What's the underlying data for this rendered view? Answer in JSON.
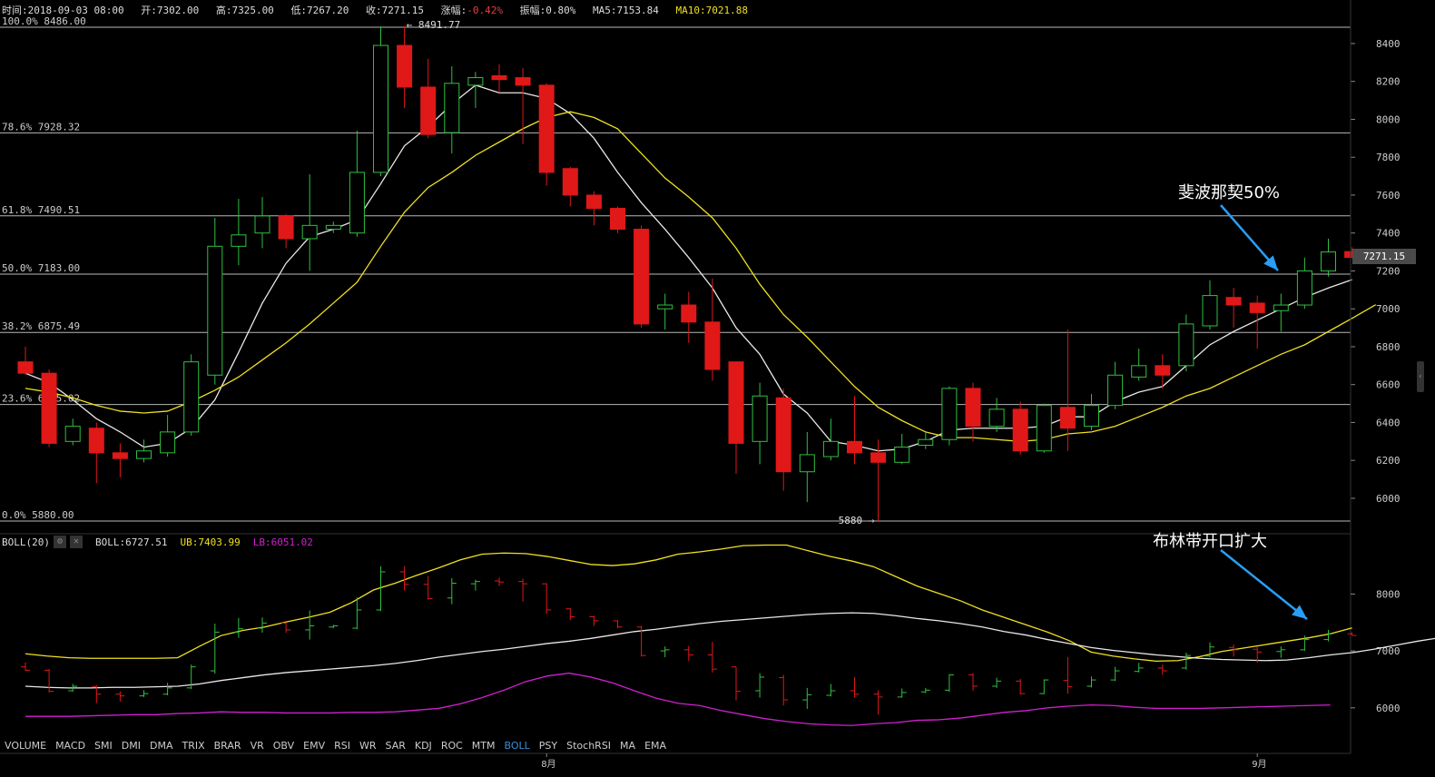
{
  "info_bar": {
    "time": "时间:2018-09-03 08:00",
    "open": "开:7302.00",
    "high": "高:7325.00",
    "low": "低:7267.20",
    "close": "收:7271.15",
    "change_label": "涨幅:",
    "change_value": "-0.42%",
    "amplitude": "振幅:0.80%",
    "ma5": "MA5:7153.84",
    "ma10": "MA10:7021.88"
  },
  "current_price": "7271.15",
  "boll_header": {
    "name": "BOLL(20)",
    "mid": "BOLL:6727.51",
    "ub": "UB:7403.99",
    "lb": "LB:6051.02"
  },
  "annotations": {
    "fib": "斐波那契50%",
    "boll": "布林带开口扩大"
  },
  "tabs": [
    "VOLUME",
    "MACD",
    "SMI",
    "DMI",
    "DMA",
    "TRIX",
    "BRAR",
    "VR",
    "OBV",
    "EMV",
    "RSI",
    "WR",
    "SAR",
    "KDJ",
    "ROC",
    "MTM",
    "BOLL",
    "PSY",
    "StochRSI",
    "MA",
    "EMA"
  ],
  "active_tab": "BOLL",
  "colors": {
    "up": "#30c040",
    "down": "#e01818",
    "ma5": "#e8e8e8",
    "ma10": "#f0e020",
    "ub": "#f0e020",
    "lb": "#d020d0",
    "mid": "#e8e8e8",
    "grid": "#d8d8d8",
    "arrow": "#2a9df4"
  },
  "chart_data": {
    "type": "candlestick",
    "price_axis": {
      "range": [
        5880,
        8486
      ],
      "ticks": [
        6000,
        6200,
        6400,
        6600,
        6800,
        7000,
        7200,
        7400,
        7600,
        7800,
        8000,
        8200,
        8400
      ]
    },
    "fib_levels": [
      {
        "label": "100.0% 8486.00",
        "value": 8486
      },
      {
        "label": "78.6% 7928.32",
        "value": 7928.32
      },
      {
        "label": "61.8% 7490.51",
        "value": 7490.51
      },
      {
        "label": "50.0% 7183.00",
        "value": 7183
      },
      {
        "label": "38.2% 6875.49",
        "value": 6875.49
      },
      {
        "label": "23.6% 6495.02",
        "value": 6495.02
      },
      {
        "label": "0.0% 5880.00",
        "value": 5880
      }
    ],
    "high_marker": "8491.77",
    "low_marker": "5880",
    "x_labels": [
      {
        "label": "8月",
        "index": 22
      },
      {
        "label": "9月",
        "index": 52
      }
    ],
    "candles": [
      {
        "o": 6720,
        "h": 6800,
        "l": 6650,
        "c": 6660
      },
      {
        "o": 6660,
        "h": 6680,
        "l": 6270,
        "c": 6290
      },
      {
        "o": 6300,
        "h": 6420,
        "l": 6280,
        "c": 6380
      },
      {
        "o": 6370,
        "h": 6400,
        "l": 6080,
        "c": 6240
      },
      {
        "o": 6240,
        "h": 6290,
        "l": 6110,
        "c": 6210
      },
      {
        "o": 6210,
        "h": 6310,
        "l": 6190,
        "c": 6250
      },
      {
        "o": 6240,
        "h": 6440,
        "l": 6220,
        "c": 6350
      },
      {
        "o": 6350,
        "h": 6760,
        "l": 6330,
        "c": 6720
      },
      {
        "o": 6650,
        "h": 7480,
        "l": 6600,
        "c": 7330
      },
      {
        "o": 7330,
        "h": 7580,
        "l": 7230,
        "c": 7390
      },
      {
        "o": 7400,
        "h": 7590,
        "l": 7320,
        "c": 7490
      },
      {
        "o": 7490,
        "h": 7500,
        "l": 7320,
        "c": 7370
      },
      {
        "o": 7370,
        "h": 7710,
        "l": 7200,
        "c": 7440
      },
      {
        "o": 7420,
        "h": 7460,
        "l": 7400,
        "c": 7440
      },
      {
        "o": 7400,
        "h": 7940,
        "l": 7380,
        "c": 7720
      },
      {
        "o": 7720,
        "h": 8490,
        "l": 7700,
        "c": 8390
      },
      {
        "o": 8390,
        "h": 8491.77,
        "l": 8060,
        "c": 8170
      },
      {
        "o": 8170,
        "h": 8320,
        "l": 7900,
        "c": 7920
      },
      {
        "o": 7930,
        "h": 8280,
        "l": 7820,
        "c": 8190
      },
      {
        "o": 8180,
        "h": 8250,
        "l": 8060,
        "c": 8220
      },
      {
        "o": 8230,
        "h": 8290,
        "l": 8140,
        "c": 8210
      },
      {
        "o": 8220,
        "h": 8270,
        "l": 7870,
        "c": 8180
      },
      {
        "o": 8180,
        "h": 8190,
        "l": 7650,
        "c": 7720
      },
      {
        "o": 7740,
        "h": 7750,
        "l": 7540,
        "c": 7600
      },
      {
        "o": 7600,
        "h": 7620,
        "l": 7440,
        "c": 7530
      },
      {
        "o": 7530,
        "h": 7540,
        "l": 7400,
        "c": 7420
      },
      {
        "o": 7420,
        "h": 7440,
        "l": 6900,
        "c": 6920
      },
      {
        "o": 7000,
        "h": 7080,
        "l": 6890,
        "c": 7020
      },
      {
        "o": 7020,
        "h": 7090,
        "l": 6820,
        "c": 6930
      },
      {
        "o": 6930,
        "h": 7160,
        "l": 6620,
        "c": 6680
      },
      {
        "o": 6720,
        "h": 6720,
        "l": 6130,
        "c": 6290
      },
      {
        "o": 6300,
        "h": 6610,
        "l": 6180,
        "c": 6540
      },
      {
        "o": 6530,
        "h": 6580,
        "l": 6040,
        "c": 6140
      },
      {
        "o": 6140,
        "h": 6350,
        "l": 5980,
        "c": 6230
      },
      {
        "o": 6220,
        "h": 6420,
        "l": 6200,
        "c": 6300
      },
      {
        "o": 6300,
        "h": 6540,
        "l": 6180,
        "c": 6240
      },
      {
        "o": 6240,
        "h": 6310,
        "l": 5880,
        "c": 6190
      },
      {
        "o": 6190,
        "h": 6340,
        "l": 6180,
        "c": 6270
      },
      {
        "o": 6280,
        "h": 6350,
        "l": 6260,
        "c": 6310
      },
      {
        "o": 6310,
        "h": 6590,
        "l": 6280,
        "c": 6580
      },
      {
        "o": 6580,
        "h": 6610,
        "l": 6300,
        "c": 6380
      },
      {
        "o": 6380,
        "h": 6530,
        "l": 6350,
        "c": 6470
      },
      {
        "o": 6470,
        "h": 6510,
        "l": 6230,
        "c": 6250
      },
      {
        "o": 6250,
        "h": 6500,
        "l": 6240,
        "c": 6490
      },
      {
        "o": 6480,
        "h": 6890,
        "l": 6250,
        "c": 6370
      },
      {
        "o": 6380,
        "h": 6550,
        "l": 6360,
        "c": 6490
      },
      {
        "o": 6490,
        "h": 6720,
        "l": 6470,
        "c": 6650
      },
      {
        "o": 6640,
        "h": 6790,
        "l": 6620,
        "c": 6700
      },
      {
        "o": 6700,
        "h": 6760,
        "l": 6580,
        "c": 6650
      },
      {
        "o": 6700,
        "h": 6970,
        "l": 6670,
        "c": 6920
      },
      {
        "o": 6910,
        "h": 7150,
        "l": 6890,
        "c": 7070
      },
      {
        "o": 7060,
        "h": 7110,
        "l": 6900,
        "c": 7020
      },
      {
        "o": 7030,
        "h": 7070,
        "l": 6790,
        "c": 6980
      },
      {
        "o": 6990,
        "h": 7080,
        "l": 6880,
        "c": 7020
      },
      {
        "o": 7020,
        "h": 7270,
        "l": 7000,
        "c": 7200
      },
      {
        "o": 7200,
        "h": 7370,
        "l": 7170,
        "c": 7300
      },
      {
        "o": 7302,
        "h": 7325,
        "l": 7267.2,
        "c": 7271.15
      }
    ],
    "ma5": [
      6660,
      6610,
      6520,
      6420,
      6350,
      6270,
      6290,
      6370,
      6520,
      6770,
      7030,
      7240,
      7380,
      7420,
      7470,
      7660,
      7860,
      7960,
      8080,
      8180,
      8140,
      8140,
      8110,
      8030,
      7900,
      7720,
      7560,
      7420,
      7270,
      7110,
      6900,
      6760,
      6550,
      6450,
      6300,
      6280,
      6250,
      6260,
      6300,
      6360,
      6370,
      6370,
      6370,
      6380,
      6430,
      6430,
      6510,
      6560,
      6590,
      6700,
      6810,
      6880,
      6940,
      7000,
      7060,
      7110,
      7153.84
    ],
    "ma10": [
      6580,
      6560,
      6530,
      6490,
      6460,
      6450,
      6460,
      6510,
      6570,
      6640,
      6730,
      6820,
      6920,
      7030,
      7140,
      7330,
      7510,
      7640,
      7720,
      7810,
      7880,
      7950,
      8010,
      8040,
      8010,
      7950,
      7820,
      7690,
      7590,
      7480,
      7320,
      7130,
      6970,
      6850,
      6720,
      6590,
      6480,
      6410,
      6350,
      6320,
      6320,
      6310,
      6300,
      6310,
      6340,
      6350,
      6380,
      6430,
      6480,
      6540,
      6580,
      6640,
      6700,
      6760,
      6810,
      6880,
      6950,
      7021.88
    ],
    "boll": {
      "axis_range": [
        5550,
        8900
      ],
      "ticks": [
        6000,
        7000,
        8000
      ],
      "ub": [
        6950,
        6910,
        6880,
        6870,
        6870,
        6870,
        6870,
        6880,
        7080,
        7270,
        7360,
        7420,
        7510,
        7590,
        7680,
        7850,
        8070,
        8190,
        8330,
        8460,
        8600,
        8700,
        8720,
        8710,
        8660,
        8590,
        8520,
        8500,
        8530,
        8600,
        8700,
        8740,
        8790,
        8850,
        8860,
        8860,
        8760,
        8660,
        8580,
        8480,
        8310,
        8140,
        8010,
        7880,
        7720,
        7590,
        7460,
        7330,
        7180,
        6980,
        6910,
        6860,
        6820,
        6830,
        6900,
        6990,
        7050,
        7110,
        7170,
        7230,
        7300,
        7403.99
      ],
      "mid": [
        6380,
        6360,
        6350,
        6350,
        6360,
        6360,
        6370,
        6380,
        6420,
        6480,
        6530,
        6580,
        6620,
        6650,
        6680,
        6710,
        6740,
        6780,
        6830,
        6890,
        6940,
        6990,
        7030,
        7080,
        7130,
        7170,
        7220,
        7280,
        7340,
        7380,
        7430,
        7480,
        7520,
        7550,
        7580,
        7610,
        7640,
        7660,
        7670,
        7660,
        7620,
        7570,
        7530,
        7480,
        7420,
        7340,
        7280,
        7200,
        7130,
        7060,
        7010,
        6970,
        6930,
        6900,
        6870,
        6850,
        6840,
        6830,
        6840,
        6880,
        6930,
        6970,
        7030,
        7100,
        7170,
        7230,
        7310,
        7390,
        7460,
        7530,
        7610,
        6727.51
      ],
      "lb": [
        5850,
        5850,
        5850,
        5860,
        5870,
        5880,
        5880,
        5900,
        5910,
        5930,
        5920,
        5920,
        5910,
        5910,
        5910,
        5920,
        5920,
        5930,
        5960,
        5990,
        6070,
        6180,
        6310,
        6460,
        6560,
        6610,
        6540,
        6440,
        6300,
        6170,
        6080,
        6040,
        5950,
        5880,
        5810,
        5760,
        5720,
        5700,
        5690,
        5720,
        5740,
        5780,
        5790,
        5820,
        5870,
        5920,
        5950,
        6000,
        6030,
        6050,
        6040,
        6010,
        5990,
        5990,
        5990,
        6000,
        6010,
        6020,
        6030,
        6040,
        6051.02
      ]
    }
  }
}
